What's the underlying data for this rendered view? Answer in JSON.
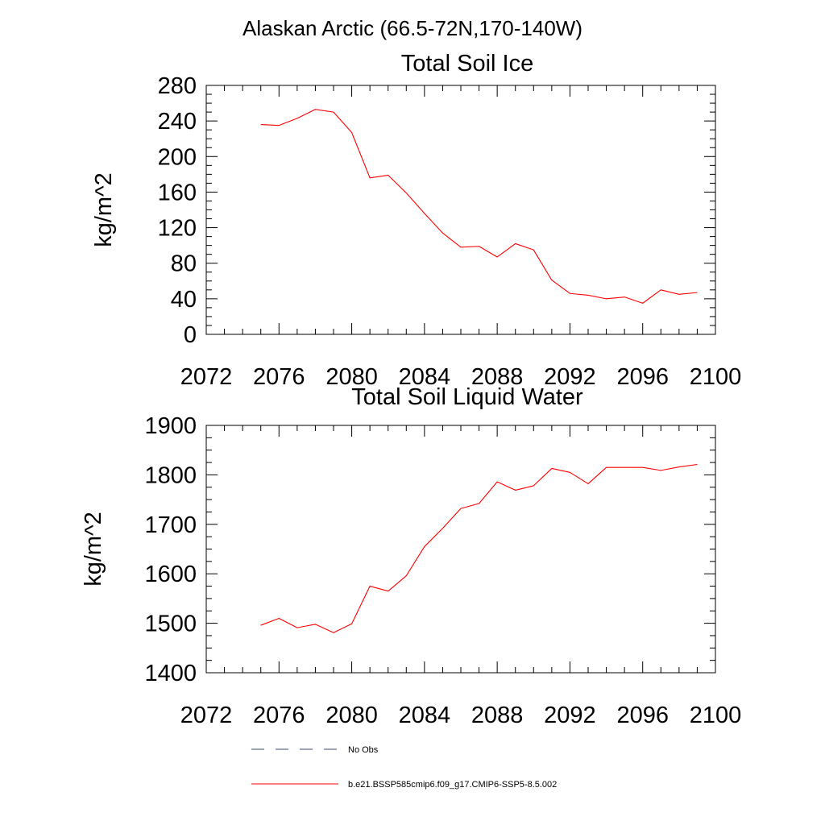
{
  "figure": {
    "main_title": "Alaskan Arctic (66.5-72N,170-140W)"
  },
  "chart_data": [
    {
      "type": "line",
      "title": "Total Soil Ice",
      "ylabel": "kg/m^2",
      "xlim": [
        2072,
        2100
      ],
      "ylim": [
        0,
        280
      ],
      "xticks": [
        2072,
        2076,
        2080,
        2084,
        2088,
        2092,
        2096,
        2100
      ],
      "yticks": [
        0,
        40,
        80,
        120,
        160,
        200,
        240,
        280
      ],
      "x": [
        2075,
        2076,
        2077,
        2078,
        2079,
        2080,
        2081,
        2082,
        2083,
        2084,
        2085,
        2086,
        2087,
        2088,
        2089,
        2090,
        2091,
        2092,
        2093,
        2094,
        2095,
        2096,
        2097,
        2098,
        2099
      ],
      "series": [
        {
          "name": "b.e21.BSSP585cmip6.f09_g17.CMIP6-SSP5-8.5.002",
          "color": "#ff0000",
          "values": [
            236,
            235,
            243,
            253,
            250,
            227,
            176,
            179,
            159,
            136,
            114,
            98,
            99,
            87,
            102,
            95,
            61,
            46,
            44,
            40,
            42,
            35,
            50,
            45,
            47
          ]
        }
      ]
    },
    {
      "type": "line",
      "title": "Total Soil Liquid Water",
      "ylabel": "kg/m^2",
      "xlim": [
        2072,
        2100
      ],
      "ylim": [
        1400,
        1900
      ],
      "xticks": [
        2072,
        2076,
        2080,
        2084,
        2088,
        2092,
        2096,
        2100
      ],
      "yticks": [
        1400,
        1500,
        1600,
        1700,
        1800,
        1900
      ],
      "x": [
        2075,
        2076,
        2077,
        2078,
        2079,
        2080,
        2081,
        2082,
        2083,
        2084,
        2085,
        2086,
        2087,
        2088,
        2089,
        2090,
        2091,
        2092,
        2093,
        2094,
        2095,
        2096,
        2097,
        2098,
        2099
      ],
      "series": [
        {
          "name": "b.e21.BSSP585cmip6.f09_g17.CMIP6-SSP5-8.5.002",
          "color": "#ff0000",
          "values": [
            1496,
            1510,
            1491,
            1498,
            1481,
            1499,
            1575,
            1565,
            1596,
            1655,
            1692,
            1732,
            1742,
            1786,
            1769,
            1778,
            1813,
            1805,
            1782,
            1815,
            1815,
            1815,
            1809,
            1816,
            1821
          ]
        }
      ]
    }
  ],
  "legend": {
    "items": [
      {
        "label": "No Obs",
        "style": "dashed",
        "color": "#3a4a7a"
      },
      {
        "label": "b.e21.BSSP585cmip6.f09_g17.CMIP6-SSP5-8.5.002",
        "style": "solid",
        "color": "#ff0000"
      }
    ]
  }
}
